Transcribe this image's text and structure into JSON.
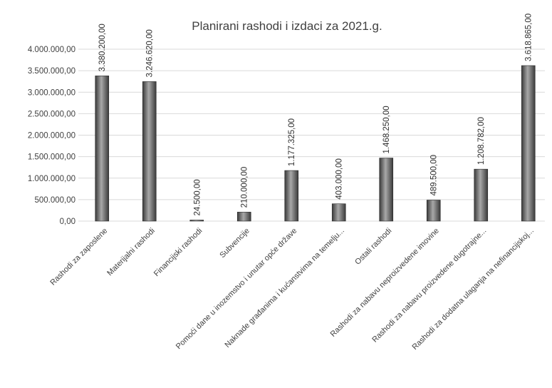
{
  "chart_data": {
    "type": "bar",
    "title": "Planirani rashodi i izdaci za 2021.g.",
    "xlabel": "",
    "ylabel": "",
    "ylim": [
      0,
      4000000
    ],
    "yticks": [
      0,
      500000,
      1000000,
      1500000,
      2000000,
      2500000,
      3000000,
      3500000,
      4000000
    ],
    "ytick_labels": [
      "0,00",
      "500.000,00",
      "1.000.000,00",
      "1.500.000,00",
      "2.000.000,00",
      "2.500.000,00",
      "3.000.000,00",
      "3.500.000,00",
      "4.000.000,00"
    ],
    "grid": true,
    "categories": [
      "Rashodi za zaposlene",
      "Materijalni rashodi",
      "Financijski rashodi",
      "Subvencije",
      "Pomoći dane u inozemstvo i unutar opće države",
      "Naknade građanima i kućanstvima na temelju...",
      "Ostali rashodi",
      "Rashodi za nabavu neproizvedene imovine",
      "Rashodi za nabavu proizvedene dugotrajne...",
      "Rashodi za dodatna ulaganja na nefinancijskoj..."
    ],
    "values": [
      3380200,
      3246620,
      24500,
      210000,
      1177325,
      403000,
      1468250,
      489500,
      1208782,
      3618865
    ],
    "data_labels": [
      "3.380.200,00",
      "3.246.620,00",
      "24.500,00",
      "210.000,00",
      "1.177.325,00",
      "403.000,00",
      "1.468.250,00",
      "489.500,00",
      "1.208.782,00",
      "3.618.865,00"
    ],
    "colors": {
      "bar_dark": "#3a3a3a",
      "bar_light": "#a8a8a8",
      "grid": "#d9d9d9",
      "text": "#404040"
    }
  }
}
